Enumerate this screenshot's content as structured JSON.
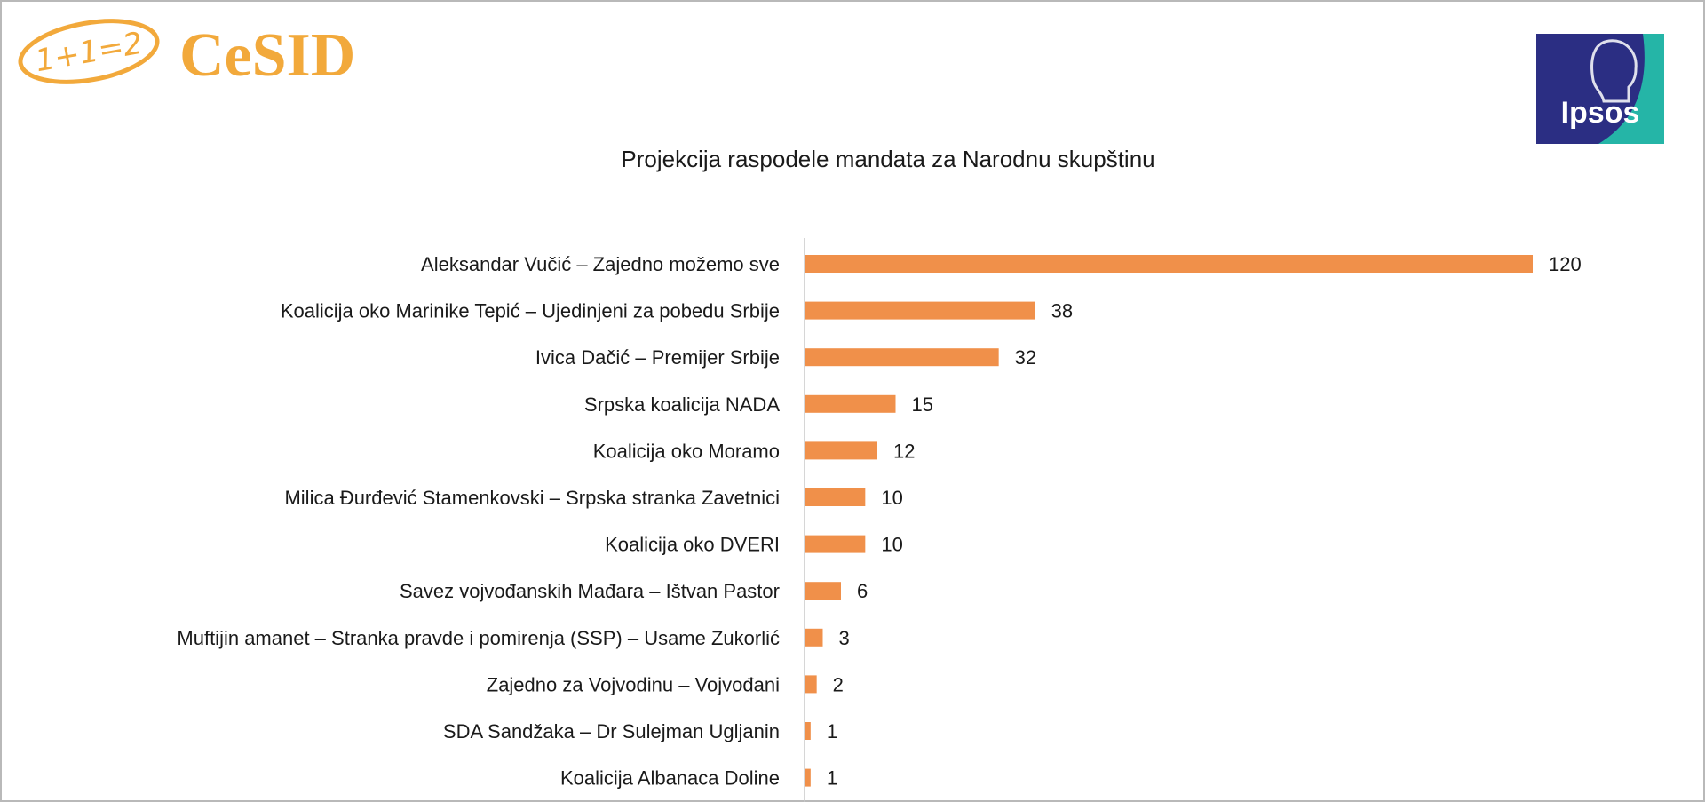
{
  "brand": {
    "left_logo_badge": "1+1=2",
    "left_logo_text": "CeSID",
    "right_logo_text": "Ipsos"
  },
  "colors": {
    "bar": "#f0904a",
    "cesid_orange": "#f2a93b",
    "ipsos_navy": "#2b2e83",
    "ipsos_teal": "#25b5a7",
    "axis": "#c8c8c8"
  },
  "chart_data": {
    "type": "bar",
    "orientation": "horizontal",
    "title": "Projekcija raspodele mandata za Narodnu skupštinu",
    "categories": [
      "Aleksandar Vučić – Zajedno možemo sve",
      "Koalicija oko Marinike Tepić – Ujedinjeni za pobedu Srbije",
      "Ivica Dačić – Premijer Srbije",
      "Srpska koalicija NADA",
      "Koalicija oko Moramo",
      "Milica Đurđević Stamenkovski – Srpska stranka Zavetnici",
      "Koalicija oko DVERI",
      "Savez vojvođanskih Mađara – Ištvan Pastor",
      "Muftijin amanet – Stranka pravde i pomirenja (SSP) – Usame Zukorlić",
      "Zajedno za Vojvodinu – Vojvođani",
      "SDA Sandžaka – Dr Sulejman Ugljanin",
      "Koalicija Albanaca Doline"
    ],
    "values": [
      120,
      38,
      32,
      15,
      12,
      10,
      10,
      6,
      3,
      2,
      1,
      1
    ],
    "xlim": [
      0,
      120
    ],
    "grid": false,
    "legend": "none",
    "data_labels": true
  }
}
